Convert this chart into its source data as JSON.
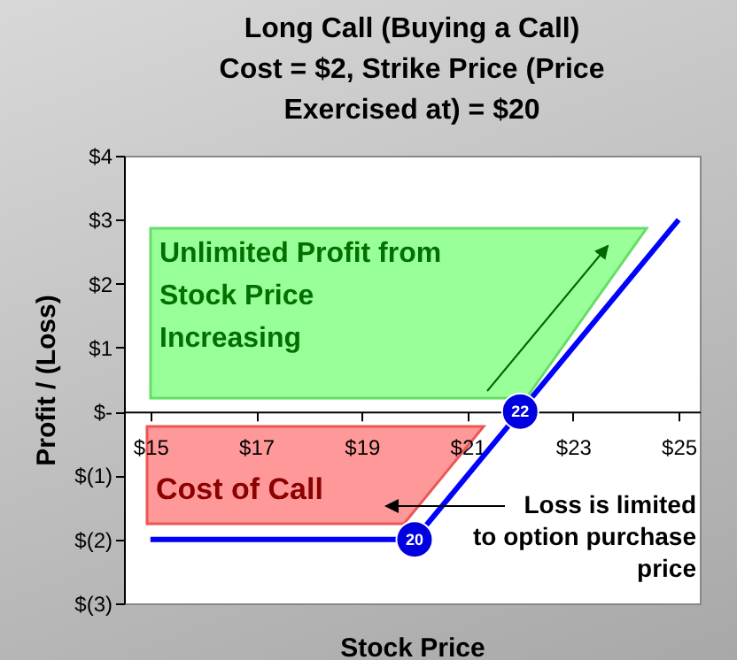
{
  "chart_data": {
    "type": "line",
    "title": "Long Call (Buying a Call)\nCost = $2, Strike Price (Price\nExercised at) = $20",
    "xlabel": "Stock Price",
    "ylabel": "Profit / (Loss)",
    "x": [
      15,
      20,
      25
    ],
    "series": [
      {
        "color": "#0000ff",
        "values": [
          -2,
          -2,
          3
        ]
      }
    ],
    "xlim": [
      14.5,
      25.4
    ],
    "xticks": [
      {
        "value": 15,
        "label": "$15"
      },
      {
        "value": 17,
        "label": "$17"
      },
      {
        "value": 19,
        "label": "$19"
      },
      {
        "value": 21,
        "label": "$21"
      },
      {
        "value": 23,
        "label": "$23"
      },
      {
        "value": 25,
        "label": "$25"
      }
    ],
    "ylim": [
      -3,
      4
    ],
    "yticks": [
      {
        "value": -3,
        "label": "$(3)"
      },
      {
        "value": -2,
        "label": "$(2)"
      },
      {
        "value": -1,
        "label": "$(1)"
      },
      {
        "value": 0,
        "label": "$-"
      },
      {
        "value": 1,
        "label": "$1"
      },
      {
        "value": 2,
        "label": "$2"
      },
      {
        "value": 3,
        "label": "$3"
      },
      {
        "value": 4,
        "label": "$4"
      }
    ],
    "grid": false,
    "marker": "none",
    "line_style": "solid",
    "annotations": [
      "Unlimited Profit from\nStock Price\nIncreasing",
      "Cost of Call",
      "Loss is limited\nto option purchase\nprice",
      {
        "text": "20",
        "x": 20,
        "y": -2
      },
      {
        "text": "22",
        "x": 22,
        "y": 0
      }
    ]
  }
}
